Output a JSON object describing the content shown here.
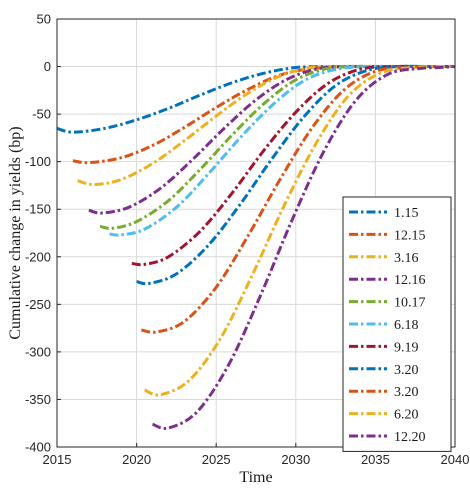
{
  "chart_data": {
    "type": "line",
    "xlabel": "Time",
    "ylabel": "Cumulative change in yields (bp)",
    "xlim": [
      2015,
      2040
    ],
    "ylim": [
      -400,
      50
    ],
    "xticks": [
      2015,
      2020,
      2025,
      2030,
      2035,
      2040
    ],
    "yticks": [
      50,
      0,
      -50,
      -100,
      -150,
      -200,
      -250,
      -300,
      -350,
      -400
    ],
    "grid": true,
    "legend_position": "bottom-right",
    "line_style": "dash-dot",
    "series": [
      {
        "name": "1.15",
        "color": "#0072bd",
        "x": [
          2015.0,
          2016.0,
          2018.0,
          2020.0,
          2022.0,
          2024.0,
          2026.0,
          2028.0,
          2030.0,
          2032.0,
          2034.0,
          2040.0
        ],
        "y": [
          -65,
          -69,
          -65,
          -56,
          -44,
          -30,
          -17,
          -7,
          -1,
          0,
          0,
          0
        ]
      },
      {
        "name": "12.15",
        "color": "#d95319",
        "x": [
          2016.0,
          2017.0,
          2019.0,
          2021.0,
          2023.0,
          2025.0,
          2027.0,
          2029.0,
          2031.0,
          2033.0,
          2035.0,
          2040.0
        ],
        "y": [
          -99,
          -101,
          -96,
          -83,
          -64,
          -43,
          -24,
          -9,
          -2,
          0,
          0,
          0
        ]
      },
      {
        "name": "3.16",
        "color": "#edb120",
        "x": [
          2016.3,
          2017.3,
          2019.0,
          2021.0,
          2023.0,
          2025.0,
          2027.0,
          2029.0,
          2031.0,
          2033.0,
          2035.0,
          2040.0
        ],
        "y": [
          -120,
          -124,
          -119,
          -102,
          -78,
          -52,
          -28,
          -10,
          -1,
          0,
          0,
          0
        ]
      },
      {
        "name": "12.16",
        "color": "#7e2f8e",
        "x": [
          2017.0,
          2017.8,
          2019.5,
          2021.5,
          2023.5,
          2025.5,
          2027.5,
          2029.5,
          2031.5,
          2033.5,
          2035.5,
          2040.0
        ],
        "y": [
          -151,
          -154,
          -148,
          -128,
          -98,
          -65,
          -35,
          -13,
          -2,
          0,
          0,
          0
        ]
      },
      {
        "name": "10.17",
        "color": "#77ac30",
        "x": [
          2017.7,
          2018.5,
          2020.0,
          2022.0,
          2024.0,
          2026.0,
          2028.0,
          2030.0,
          2032.0,
          2034.0,
          2036.0,
          2040.0
        ],
        "y": [
          -168,
          -170,
          -163,
          -141,
          -108,
          -72,
          -39,
          -14,
          -2,
          0,
          0,
          0
        ]
      },
      {
        "name": "6.18",
        "color": "#4dbeee",
        "x": [
          2018.3,
          2019.0,
          2020.5,
          2022.5,
          2024.5,
          2026.5,
          2028.5,
          2030.5,
          2032.5,
          2034.5,
          2036.5,
          2040.0
        ],
        "y": [
          -176,
          -177,
          -171,
          -148,
          -113,
          -75,
          -41,
          -15,
          -3,
          0,
          0,
          0
        ]
      },
      {
        "name": "9.19",
        "color": "#a2142f",
        "x": [
          2019.7,
          2020.5,
          2022.0,
          2024.0,
          2026.0,
          2028.0,
          2030.0,
          2032.0,
          2034.0,
          2036.0,
          2038.0,
          2040.0
        ],
        "y": [
          -207,
          -208,
          -200,
          -173,
          -133,
          -88,
          -48,
          -18,
          -3,
          0,
          0,
          0
        ]
      },
      {
        "name": "3.20",
        "color": "#0072bd",
        "x": [
          2020.0,
          2020.8,
          2022.5,
          2024.5,
          2026.5,
          2028.5,
          2030.5,
          2032.5,
          2034.5,
          2036.5,
          2038.5,
          2040.0
        ],
        "y": [
          -226,
          -228,
          -218,
          -188,
          -145,
          -97,
          -53,
          -20,
          -4,
          0,
          0,
          0
        ]
      },
      {
        "name": "3.20",
        "color": "#d95319",
        "x": [
          2020.3,
          2021.3,
          2023.0,
          2025.0,
          2027.0,
          2029.0,
          2031.0,
          2033.0,
          2035.0,
          2037.0,
          2039.0,
          2040.0
        ],
        "y": [
          -277,
          -279,
          -268,
          -232,
          -178,
          -119,
          -65,
          -25,
          -5,
          -1,
          0,
          0
        ]
      },
      {
        "name": "6.20",
        "color": "#edb120",
        "x": [
          2020.5,
          2021.5,
          2023.3,
          2025.3,
          2027.3,
          2029.3,
          2031.3,
          2033.3,
          2035.3,
          2037.3,
          2039.0,
          2040.0
        ],
        "y": [
          -340,
          -345,
          -330,
          -285,
          -218,
          -145,
          -80,
          -31,
          -7,
          -1,
          0,
          0
        ]
      },
      {
        "name": "12.20",
        "color": "#7e2f8e",
        "x": [
          2021.0,
          2022.0,
          2023.8,
          2025.8,
          2027.8,
          2029.8,
          2031.8,
          2033.8,
          2035.8,
          2037.8,
          2039.0,
          2040.0
        ],
        "y": [
          -376,
          -380,
          -363,
          -313,
          -240,
          -160,
          -88,
          -35,
          -8,
          -2,
          -1,
          0
        ]
      }
    ]
  }
}
